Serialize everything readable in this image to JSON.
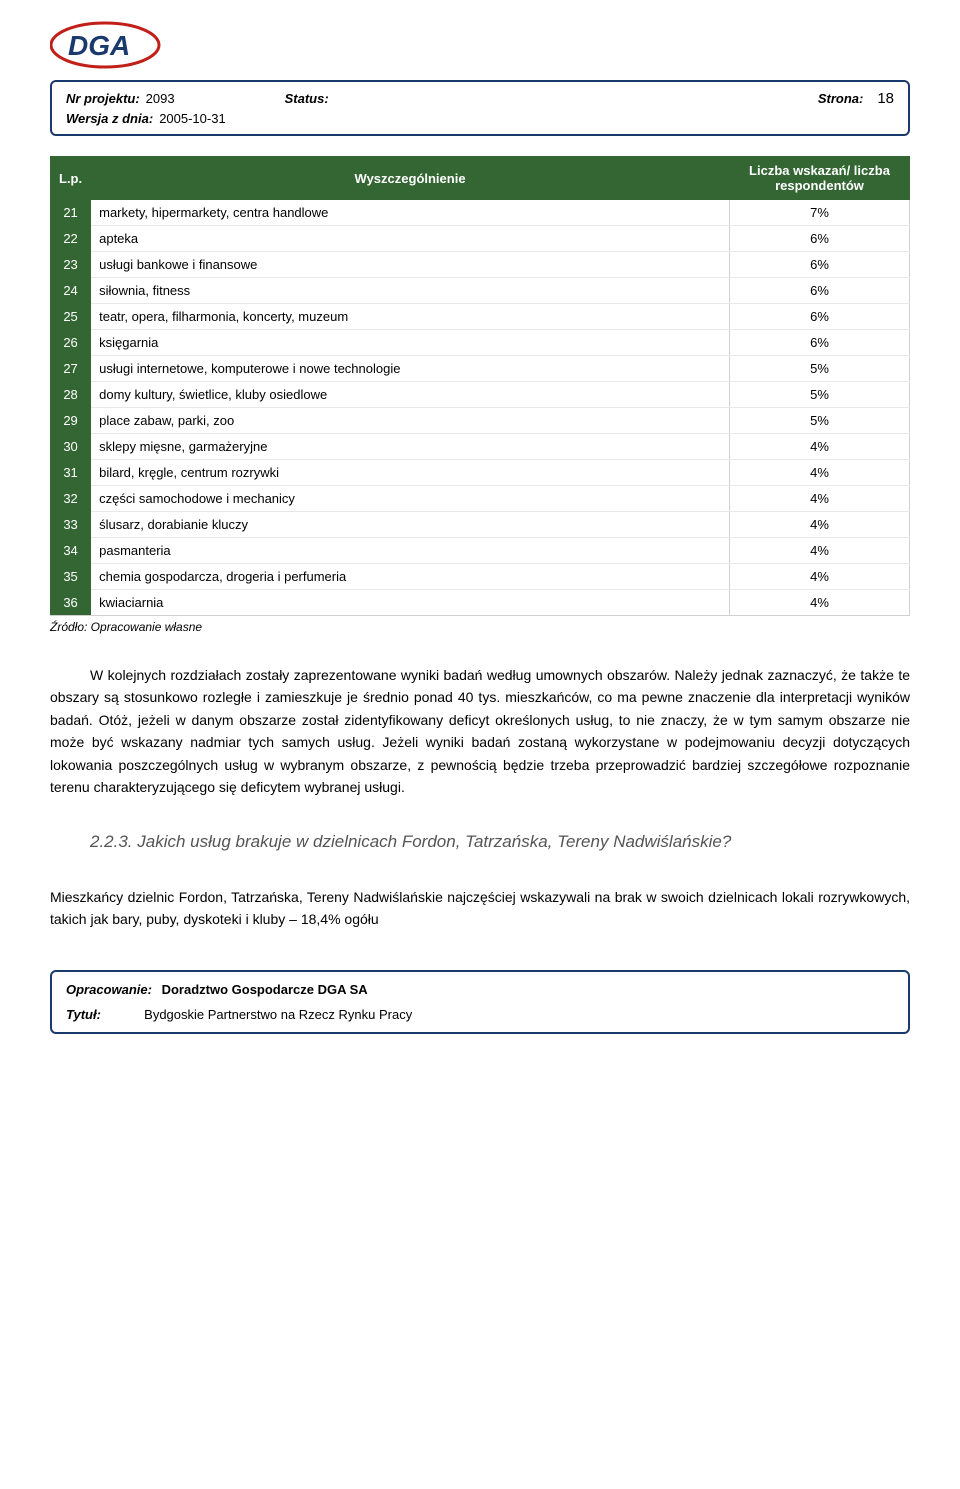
{
  "logo": {
    "text": "DGA",
    "main_color": "#1a3a6e",
    "accent_color": "#c02018"
  },
  "meta": {
    "labels": {
      "project_no": "Nr projektu:",
      "status": "Status:",
      "page": "Strona:",
      "version_date": "Wersja z dnia:"
    },
    "project_no": "2093",
    "status": "",
    "page_no": "18",
    "version_date": "2005-10-31"
  },
  "table": {
    "headers": {
      "lp": "L.p.",
      "name": "Wyszczególnienie",
      "value": "Liczba wskazań/ liczba respondentów"
    },
    "col_widths_pct": [
      6,
      73,
      21
    ],
    "header_bg": "#336633",
    "header_fg": "#ffffff",
    "cell_border": "#d0d0d0",
    "rows": [
      {
        "lp": "21",
        "name": "markety, hipermarkety, centra handlowe",
        "value": "7%"
      },
      {
        "lp": "22",
        "name": "apteka",
        "value": "6%"
      },
      {
        "lp": "23",
        "name": "usługi bankowe i finansowe",
        "value": "6%"
      },
      {
        "lp": "24",
        "name": "siłownia, fitness",
        "value": "6%"
      },
      {
        "lp": "25",
        "name": "teatr, opera, filharmonia, koncerty, muzeum",
        "value": "6%"
      },
      {
        "lp": "26",
        "name": "księgarnia",
        "value": "6%"
      },
      {
        "lp": "27",
        "name": "usługi internetowe, komputerowe i nowe technologie",
        "value": "5%"
      },
      {
        "lp": "28",
        "name": "domy kultury, świetlice, kluby osiedlowe",
        "value": "5%"
      },
      {
        "lp": "29",
        "name": "place zabaw, parki, zoo",
        "value": "5%"
      },
      {
        "lp": "30",
        "name": "sklepy mięsne, garmażeryjne",
        "value": "4%"
      },
      {
        "lp": "31",
        "name": "bilard, kręgle, centrum rozrywki",
        "value": "4%"
      },
      {
        "lp": "32",
        "name": "części samochodowe i mechanicy",
        "value": "4%"
      },
      {
        "lp": "33",
        "name": "ślusarz, dorabianie kluczy",
        "value": "4%"
      },
      {
        "lp": "34",
        "name": "pasmanteria",
        "value": "4%"
      },
      {
        "lp": "35",
        "name": "chemia gospodarcza, drogeria i perfumeria",
        "value": "4%"
      },
      {
        "lp": "36",
        "name": "kwiaciarnia",
        "value": "4%"
      }
    ]
  },
  "source_note": "Źródło: Opracowanie własne",
  "paragraph1": "W kolejnych rozdziałach zostały zaprezentowane wyniki badań według umownych obszarów. Należy jednak zaznaczyć, że także te obszary są stosunkowo rozległe i zamieszkuje je średnio ponad 40 tys. mieszkańców, co ma pewne znaczenie dla interpretacji wyników badań. Otóż, jeżeli w danym obszarze został zidentyfikowany deficyt określonych usług, to nie znaczy, że w tym samym obszarze nie może być wskazany nadmiar tych samych usług. Jeżeli wyniki badań zostaną wykorzystane w podejmowaniu decyzji dotyczących lokowania poszczególnych usług w wybranym obszarze, z pewnością będzie trzeba przeprowadzić bardziej szczegółowe rozpoznanie terenu charakteryzującego się deficytem wybranej usługi.",
  "section_heading": "2.2.3. Jakich usług brakuje w dzielnicach Fordon, Tatrzańska, Tereny Nadwiślańskie?",
  "paragraph2": "Mieszkańcy dzielnic Fordon, Tatrzańska, Tereny Nadwiślańskie najczęściej wskazywali na brak w swoich dzielnicach lokali rozrywkowych, takich jak bary, puby, dyskoteki i kluby – 18,4% ogółu",
  "footer": {
    "labels": {
      "opracowanie": "Opracowanie:",
      "tytul": "Tytuł:"
    },
    "opracowanie": "Doradztwo Gospodarcze DGA SA",
    "tytul": "Bydgoskie Partnerstwo na Rzecz Rynku Pracy"
  },
  "typography": {
    "body_font_family": "Verdana, Tahoma, Arial, sans-serif",
    "body_fontsize_pt": 10.5,
    "table_fontsize_pt": 10,
    "heading_color": "#555555"
  }
}
